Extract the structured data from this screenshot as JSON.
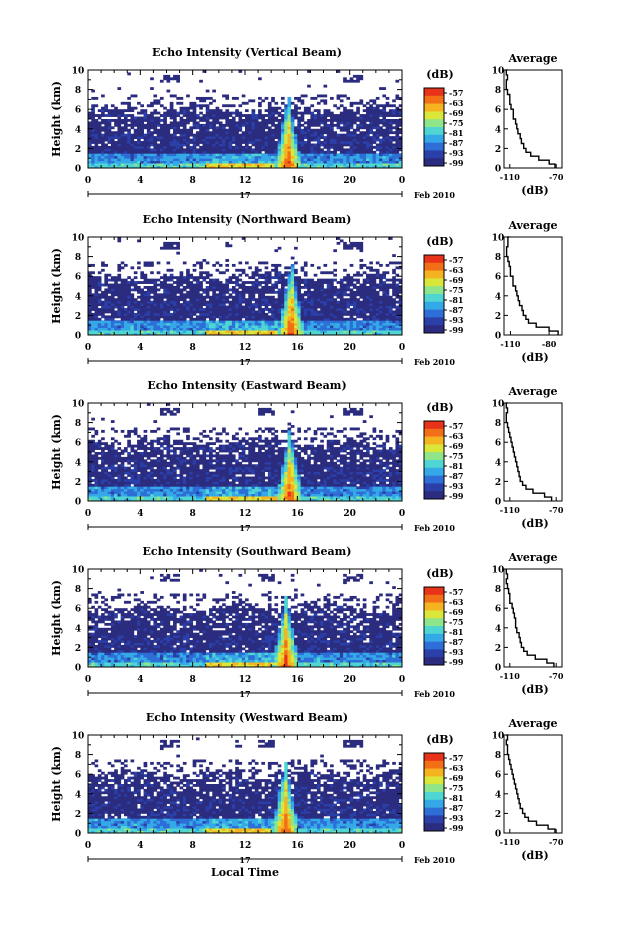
{
  "chart_data": [
    {
      "type": "heatmap",
      "title": "Echo Intensity (Vertical Beam)",
      "ylabel": "Height (km)",
      "xlim": [
        0,
        24
      ],
      "ylim": [
        0,
        10
      ],
      "x_ticks": [
        "0",
        "4",
        "8",
        "12",
        "16",
        "20",
        "0"
      ],
      "y_ticks": [
        "0",
        "2",
        "4",
        "6",
        "8",
        "10"
      ],
      "date_day": "17",
      "date_label": "Feb 2010",
      "colorbar": {
        "unit": "(dB)",
        "ticks": [
          "-57",
          "-63",
          "-69",
          "-75",
          "-81",
          "-87",
          "-93",
          "-99"
        ]
      },
      "average": {
        "title": "Average",
        "xlabel": "(dB)",
        "x_ticks": [
          "-110",
          "-70"
        ],
        "xlim": [
          -115,
          -65
        ],
        "profile": [
          [
            0.0,
            -71
          ],
          [
            0.4,
            -76
          ],
          [
            0.8,
            -85
          ],
          [
            1.2,
            -92
          ],
          [
            1.6,
            -96
          ],
          [
            2.0,
            -98
          ],
          [
            2.5,
            -100
          ],
          [
            3.0,
            -101
          ],
          [
            3.5,
            -103
          ],
          [
            4.0,
            -104
          ],
          [
            4.5,
            -105
          ],
          [
            5.0,
            -107
          ],
          [
            5.5,
            -107
          ],
          [
            6.0,
            -109
          ],
          [
            6.5,
            -110
          ],
          [
            7.0,
            -110
          ],
          [
            7.5,
            -112
          ],
          [
            8.0,
            -113
          ],
          [
            8.5,
            -113
          ],
          [
            9.0,
            -112
          ],
          [
            9.5,
            -113
          ],
          [
            10.0,
            -112
          ]
        ]
      }
    },
    {
      "type": "heatmap",
      "title": "Echo Intensity (Northward Beam)",
      "ylabel": "Height (km)",
      "xlim": [
        0,
        24
      ],
      "ylim": [
        0,
        10
      ],
      "x_ticks": [
        "0",
        "4",
        "8",
        "12",
        "16",
        "20",
        "0"
      ],
      "y_ticks": [
        "0",
        "2",
        "4",
        "6",
        "8",
        "10"
      ],
      "date_day": "17",
      "date_label": "Feb 2010",
      "colorbar": {
        "unit": "(dB)",
        "ticks": [
          "-57",
          "-63",
          "-69",
          "-75",
          "-81",
          "-87",
          "-93",
          "-99"
        ]
      },
      "average": {
        "title": "Average",
        "xlabel": "(dB)",
        "x_ticks": [
          "-110",
          "-80"
        ],
        "xlim": [
          -115,
          -70
        ],
        "profile": [
          [
            0.0,
            -73
          ],
          [
            0.4,
            -80
          ],
          [
            0.8,
            -90
          ],
          [
            1.2,
            -96
          ],
          [
            1.6,
            -98
          ],
          [
            2.0,
            -100
          ],
          [
            2.5,
            -101
          ],
          [
            3.0,
            -103
          ],
          [
            3.5,
            -104
          ],
          [
            4.0,
            -105
          ],
          [
            4.5,
            -106
          ],
          [
            5.0,
            -108
          ],
          [
            5.5,
            -108
          ],
          [
            6.0,
            -110
          ],
          [
            6.5,
            -110
          ],
          [
            7.0,
            -111
          ],
          [
            7.5,
            -112
          ],
          [
            8.0,
            -113
          ],
          [
            8.5,
            -113
          ],
          [
            9.0,
            -112
          ],
          [
            9.5,
            -112
          ],
          [
            10.0,
            -111
          ]
        ]
      }
    },
    {
      "type": "heatmap",
      "title": "Echo Intensity (Eastward Beam)",
      "ylabel": "Height (km)",
      "xlim": [
        0,
        24
      ],
      "ylim": [
        0,
        10
      ],
      "x_ticks": [
        "0",
        "4",
        "8",
        "12",
        "16",
        "20",
        "0"
      ],
      "y_ticks": [
        "0",
        "2",
        "4",
        "6",
        "8",
        "10"
      ],
      "date_day": "17",
      "date_label": "Feb 2010",
      "colorbar": {
        "unit": "(dB)",
        "ticks": [
          "-57",
          "-63",
          "-69",
          "-75",
          "-81",
          "-87",
          "-93",
          "-99"
        ]
      },
      "average": {
        "title": "Average",
        "xlabel": "(dB)",
        "x_ticks": [
          "-110",
          "-70"
        ],
        "xlim": [
          -115,
          -65
        ],
        "profile": [
          [
            0.0,
            -74
          ],
          [
            0.4,
            -80
          ],
          [
            0.8,
            -90
          ],
          [
            1.2,
            -96
          ],
          [
            1.6,
            -99
          ],
          [
            2.0,
            -101
          ],
          [
            2.5,
            -102
          ],
          [
            3.0,
            -103
          ],
          [
            3.5,
            -104
          ],
          [
            4.0,
            -105
          ],
          [
            4.5,
            -106
          ],
          [
            5.0,
            -107
          ],
          [
            5.5,
            -108
          ],
          [
            6.0,
            -109
          ],
          [
            6.5,
            -110
          ],
          [
            7.0,
            -111
          ],
          [
            7.5,
            -112
          ],
          [
            8.0,
            -113
          ],
          [
            8.5,
            -113
          ],
          [
            9.0,
            -112
          ],
          [
            9.5,
            -113
          ],
          [
            10.0,
            -112
          ]
        ]
      }
    },
    {
      "type": "heatmap",
      "title": "Echo Intensity (Southward Beam)",
      "ylabel": "Height (km)",
      "xlim": [
        0,
        24
      ],
      "ylim": [
        0,
        10
      ],
      "x_ticks": [
        "0",
        "4",
        "8",
        "12",
        "16",
        "20",
        "0"
      ],
      "y_ticks": [
        "0",
        "2",
        "4",
        "6",
        "8",
        "10"
      ],
      "date_day": "17",
      "date_label": "Feb 2010",
      "colorbar": {
        "unit": "(dB)",
        "ticks": [
          "-57",
          "-63",
          "-69",
          "-75",
          "-81",
          "-87",
          "-93",
          "-99"
        ]
      },
      "average": {
        "title": "Average",
        "xlabel": "(dB)",
        "x_ticks": [
          "-110",
          "-70"
        ],
        "xlim": [
          -115,
          -65
        ],
        "profile": [
          [
            0.0,
            -72
          ],
          [
            0.4,
            -78
          ],
          [
            0.8,
            -88
          ],
          [
            1.2,
            -95
          ],
          [
            1.6,
            -98
          ],
          [
            2.0,
            -100
          ],
          [
            2.5,
            -101
          ],
          [
            3.0,
            -102
          ],
          [
            3.5,
            -104
          ],
          [
            4.0,
            -105
          ],
          [
            4.5,
            -105
          ],
          [
            5.0,
            -106
          ],
          [
            5.5,
            -107
          ],
          [
            6.0,
            -108
          ],
          [
            6.5,
            -110
          ],
          [
            7.0,
            -110
          ],
          [
            7.5,
            -111
          ],
          [
            8.0,
            -112
          ],
          [
            8.5,
            -113
          ],
          [
            9.0,
            -112
          ],
          [
            9.5,
            -113
          ],
          [
            10.0,
            -113
          ]
        ]
      }
    },
    {
      "type": "heatmap",
      "title": "Echo Intensity (Westward Beam)",
      "ylabel": "Height (km)",
      "xlabel": "Local Time",
      "xlim": [
        0,
        24
      ],
      "ylim": [
        0,
        10
      ],
      "x_ticks": [
        "0",
        "4",
        "8",
        "12",
        "16",
        "20",
        "0"
      ],
      "y_ticks": [
        "0",
        "2",
        "4",
        "6",
        "8",
        "10"
      ],
      "date_day": "17",
      "date_label": "Feb 2010",
      "colorbar": {
        "unit": "(dB)",
        "ticks": [
          "-57",
          "-63",
          "-69",
          "-75",
          "-81",
          "-87",
          "-93",
          "-99"
        ]
      },
      "average": {
        "title": "Average",
        "xlabel": "(dB)",
        "x_ticks": [
          "-110",
          "-70"
        ],
        "xlim": [
          -115,
          -65
        ],
        "profile": [
          [
            0.0,
            -71
          ],
          [
            0.4,
            -77
          ],
          [
            0.8,
            -87
          ],
          [
            1.2,
            -94
          ],
          [
            1.6,
            -97
          ],
          [
            2.0,
            -99
          ],
          [
            2.5,
            -101
          ],
          [
            3.0,
            -102
          ],
          [
            3.5,
            -103
          ],
          [
            4.0,
            -104
          ],
          [
            4.5,
            -105
          ],
          [
            5.0,
            -106
          ],
          [
            5.5,
            -107
          ],
          [
            6.0,
            -108
          ],
          [
            6.5,
            -109
          ],
          [
            7.0,
            -110
          ],
          [
            7.5,
            -111
          ],
          [
            8.0,
            -112
          ],
          [
            8.5,
            -112
          ],
          [
            9.0,
            -113
          ],
          [
            9.5,
            -112
          ],
          [
            10.0,
            -113
          ]
        ]
      }
    }
  ],
  "colors": {
    "colormap": [
      "#2b2c7f",
      "#2a3fa8",
      "#2d6fd6",
      "#35a9e8",
      "#4fd6d2",
      "#8ee58a",
      "#dbe63a",
      "#f5b41f",
      "#f26f17",
      "#e8331a"
    ]
  }
}
